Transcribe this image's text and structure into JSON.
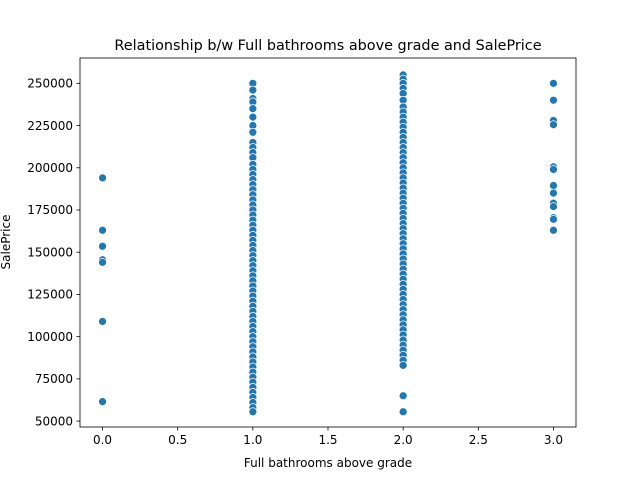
{
  "chart_data": {
    "type": "scatter",
    "title": "Relationship b/w Full bathrooms above grade and SalePrice",
    "xlabel": "Full bathrooms above grade",
    "ylabel": "SalePrice",
    "xlim": [
      -0.15,
      3.15
    ],
    "ylim": [
      46500,
      265000
    ],
    "xticks": [
      0.0,
      0.5,
      1.0,
      1.5,
      2.0,
      2.5,
      3.0
    ],
    "xtick_labels": [
      "0.0",
      "0.5",
      "1.0",
      "1.5",
      "2.0",
      "2.5",
      "3.0"
    ],
    "yticks": [
      50000,
      75000,
      100000,
      125000,
      150000,
      175000,
      200000,
      225000,
      250000
    ],
    "ytick_labels": [
      "50000",
      "75000",
      "100000",
      "125000",
      "150000",
      "175000",
      "200000",
      "225000",
      "250000"
    ],
    "grid": false,
    "marker_color": "#1f77b4",
    "points": [
      {
        "x": 0,
        "y": 194000
      },
      {
        "x": 0,
        "y": 163000
      },
      {
        "x": 0,
        "y": 153500
      },
      {
        "x": 0,
        "y": 145500
      },
      {
        "x": 0,
        "y": 144000
      },
      {
        "x": 0,
        "y": 109000
      },
      {
        "x": 0,
        "y": 61500
      },
      {
        "x": 1,
        "y": 250000
      },
      {
        "x": 1,
        "y": 246000
      },
      {
        "x": 1,
        "y": 241000
      },
      {
        "x": 1,
        "y": 239000
      },
      {
        "x": 1,
        "y": 235000
      },
      {
        "x": 1,
        "y": 230000
      },
      {
        "x": 1,
        "y": 225000
      },
      {
        "x": 1,
        "y": 221000
      },
      {
        "x": 1,
        "y": 215000
      },
      {
        "x": 1,
        "y": 212000
      },
      {
        "x": 1,
        "y": 209000
      },
      {
        "x": 1,
        "y": 206000
      },
      {
        "x": 1,
        "y": 202000
      },
      {
        "x": 1,
        "y": 199000
      },
      {
        "x": 1,
        "y": 196000
      },
      {
        "x": 1,
        "y": 193000
      },
      {
        "x": 1,
        "y": 190000
      },
      {
        "x": 1,
        "y": 187000
      },
      {
        "x": 1,
        "y": 184000
      },
      {
        "x": 1,
        "y": 181000
      },
      {
        "x": 1,
        "y": 178000
      },
      {
        "x": 1,
        "y": 175000
      },
      {
        "x": 1,
        "y": 172000
      },
      {
        "x": 1,
        "y": 169000
      },
      {
        "x": 1,
        "y": 166000
      },
      {
        "x": 1,
        "y": 163000
      },
      {
        "x": 1,
        "y": 160000
      },
      {
        "x": 1,
        "y": 157000
      },
      {
        "x": 1,
        "y": 154000
      },
      {
        "x": 1,
        "y": 151000
      },
      {
        "x": 1,
        "y": 148000
      },
      {
        "x": 1,
        "y": 145000
      },
      {
        "x": 1,
        "y": 142000
      },
      {
        "x": 1,
        "y": 139000
      },
      {
        "x": 1,
        "y": 136000
      },
      {
        "x": 1,
        "y": 133000
      },
      {
        "x": 1,
        "y": 130000
      },
      {
        "x": 1,
        "y": 127000
      },
      {
        "x": 1,
        "y": 124000
      },
      {
        "x": 1,
        "y": 121000
      },
      {
        "x": 1,
        "y": 118000
      },
      {
        "x": 1,
        "y": 115000
      },
      {
        "x": 1,
        "y": 112000
      },
      {
        "x": 1,
        "y": 109000
      },
      {
        "x": 1,
        "y": 106000
      },
      {
        "x": 1,
        "y": 103000
      },
      {
        "x": 1,
        "y": 100000
      },
      {
        "x": 1,
        "y": 97000
      },
      {
        "x": 1,
        "y": 94000
      },
      {
        "x": 1,
        "y": 91000
      },
      {
        "x": 1,
        "y": 88000
      },
      {
        "x": 1,
        "y": 85000
      },
      {
        "x": 1,
        "y": 82000
      },
      {
        "x": 1,
        "y": 79000
      },
      {
        "x": 1,
        "y": 76000
      },
      {
        "x": 1,
        "y": 73000
      },
      {
        "x": 1,
        "y": 70000
      },
      {
        "x": 1,
        "y": 67000
      },
      {
        "x": 1,
        "y": 64000
      },
      {
        "x": 1,
        "y": 61000
      },
      {
        "x": 1,
        "y": 58000
      },
      {
        "x": 1,
        "y": 55500
      },
      {
        "x": 2,
        "y": 255000
      },
      {
        "x": 2,
        "y": 252500
      },
      {
        "x": 2,
        "y": 250000
      },
      {
        "x": 2,
        "y": 247000
      },
      {
        "x": 2,
        "y": 244000
      },
      {
        "x": 2,
        "y": 240000
      },
      {
        "x": 2,
        "y": 236000
      },
      {
        "x": 2,
        "y": 233000
      },
      {
        "x": 2,
        "y": 230000
      },
      {
        "x": 2,
        "y": 227000
      },
      {
        "x": 2,
        "y": 224000
      },
      {
        "x": 2,
        "y": 221000
      },
      {
        "x": 2,
        "y": 218000
      },
      {
        "x": 2,
        "y": 215000
      },
      {
        "x": 2,
        "y": 212000
      },
      {
        "x": 2,
        "y": 209000
      },
      {
        "x": 2,
        "y": 206000
      },
      {
        "x": 2,
        "y": 203000
      },
      {
        "x": 2,
        "y": 200000
      },
      {
        "x": 2,
        "y": 197000
      },
      {
        "x": 2,
        "y": 194000
      },
      {
        "x": 2,
        "y": 191000
      },
      {
        "x": 2,
        "y": 188000
      },
      {
        "x": 2,
        "y": 185000
      },
      {
        "x": 2,
        "y": 182000
      },
      {
        "x": 2,
        "y": 179000
      },
      {
        "x": 2,
        "y": 176000
      },
      {
        "x": 2,
        "y": 173000
      },
      {
        "x": 2,
        "y": 170000
      },
      {
        "x": 2,
        "y": 167000
      },
      {
        "x": 2,
        "y": 164000
      },
      {
        "x": 2,
        "y": 161000
      },
      {
        "x": 2,
        "y": 158000
      },
      {
        "x": 2,
        "y": 155000
      },
      {
        "x": 2,
        "y": 152000
      },
      {
        "x": 2,
        "y": 149000
      },
      {
        "x": 2,
        "y": 146000
      },
      {
        "x": 2,
        "y": 143000
      },
      {
        "x": 2,
        "y": 140000
      },
      {
        "x": 2,
        "y": 137000
      },
      {
        "x": 2,
        "y": 134000
      },
      {
        "x": 2,
        "y": 131000
      },
      {
        "x": 2,
        "y": 128000
      },
      {
        "x": 2,
        "y": 125000
      },
      {
        "x": 2,
        "y": 122000
      },
      {
        "x": 2,
        "y": 119000
      },
      {
        "x": 2,
        "y": 116000
      },
      {
        "x": 2,
        "y": 113000
      },
      {
        "x": 2,
        "y": 110000
      },
      {
        "x": 2,
        "y": 107000
      },
      {
        "x": 2,
        "y": 104000
      },
      {
        "x": 2,
        "y": 101000
      },
      {
        "x": 2,
        "y": 98000
      },
      {
        "x": 2,
        "y": 95000
      },
      {
        "x": 2,
        "y": 92000
      },
      {
        "x": 2,
        "y": 89000
      },
      {
        "x": 2,
        "y": 86000
      },
      {
        "x": 2,
        "y": 83000
      },
      {
        "x": 2,
        "y": 65000
      },
      {
        "x": 2,
        "y": 55500
      },
      {
        "x": 3,
        "y": 250000
      },
      {
        "x": 3,
        "y": 240000
      },
      {
        "x": 3,
        "y": 228000
      },
      {
        "x": 3,
        "y": 225500
      },
      {
        "x": 3,
        "y": 200500
      },
      {
        "x": 3,
        "y": 199000
      },
      {
        "x": 3,
        "y": 189500
      },
      {
        "x": 3,
        "y": 185000
      },
      {
        "x": 3,
        "y": 179000
      },
      {
        "x": 3,
        "y": 177000
      },
      {
        "x": 3,
        "y": 170500
      },
      {
        "x": 3,
        "y": 169500
      },
      {
        "x": 3,
        "y": 163000
      }
    ]
  }
}
